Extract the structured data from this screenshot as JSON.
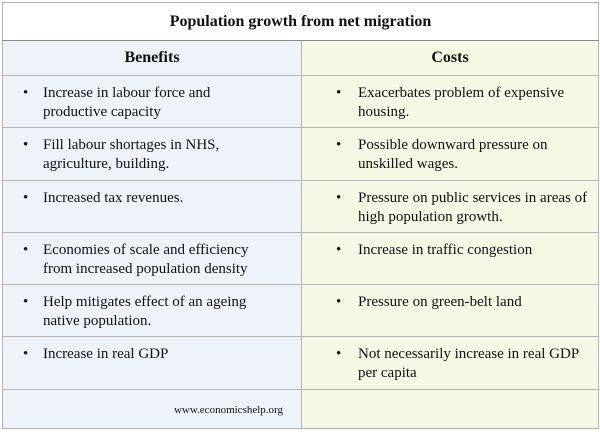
{
  "table": {
    "title": "Population growth from net migration",
    "headers": [
      "Benefits",
      "Costs"
    ],
    "rows": [
      [
        "Increase in labour force and productive capacity",
        "Exacerbates problem of expensive housing."
      ],
      [
        "Fill labour shortages in NHS, agriculture, building.",
        "Possible downward pressure on unskilled wages."
      ],
      [
        "Increased tax revenues.",
        "Pressure on public services in areas of high population growth."
      ],
      [
        "Economies of scale and efficiency from increased population density",
        "Increase in traffic congestion"
      ],
      [
        "Help mitigates effect of an ageing native population.",
        "Pressure on green-belt land"
      ],
      [
        "Increase in real GDP",
        "Not necessarily increase in real GDP per capita"
      ]
    ],
    "footer": "www.economicshelp.org"
  }
}
